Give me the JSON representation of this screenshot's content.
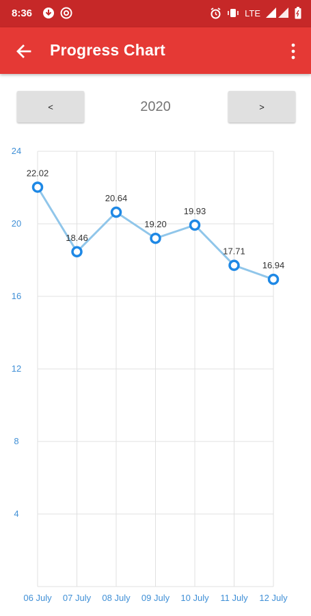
{
  "status_bar": {
    "time": "8:36",
    "network": "LTE",
    "icons": [
      "download-icon",
      "sync-icon",
      "alarm-icon",
      "vibrate-icon",
      "signal-icon",
      "battery-icon"
    ]
  },
  "app_bar": {
    "title": "Progress Chart",
    "back_icon": "arrow-back-icon",
    "menu_icon": "more-vert-icon"
  },
  "navigation": {
    "prev_label": "<",
    "year": "2020",
    "next_label": ">"
  },
  "colors": {
    "status_bar": "#c62828",
    "app_bar": "#e53935",
    "line": "#90c6ea",
    "point": "#1e88e5",
    "tick_label": "#3f8fd6",
    "grid": "#e0e0e0"
  },
  "chart_data": {
    "type": "line",
    "categories": [
      "06 July",
      "07 July",
      "08 July",
      "09 July",
      "10 July",
      "11 July",
      "12 July"
    ],
    "series": [
      {
        "values": [
          22.02,
          18.46,
          20.64,
          19.2,
          19.93,
          17.71,
          16.94
        ]
      }
    ],
    "data_labels": [
      "22.02",
      "18.46",
      "20.64",
      "19.20",
      "19.93",
      "17.71",
      "16.94"
    ],
    "ylim": [
      0,
      24
    ],
    "yticks": [
      "4",
      "8",
      "12",
      "16",
      "20",
      "24"
    ],
    "grid": true,
    "legend": "none"
  }
}
